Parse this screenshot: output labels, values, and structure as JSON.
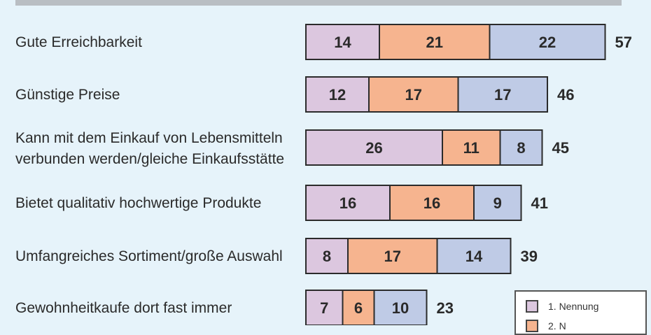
{
  "chart_data": {
    "type": "bar",
    "orientation": "horizontal",
    "stacked": true,
    "categories": [
      [
        "Gute Erreichbarkeit"
      ],
      [
        "Günstige Preise"
      ],
      [
        "Kann mit dem Einkauf von Lebensmitteln",
        "verbunden werden/gleiche Einkaufsstätte"
      ],
      [
        "Bietet qualitativ hochwertige Produkte"
      ],
      [
        "Umfangreiches Sortiment/große Auswahl"
      ],
      [
        "Gewohnheitkaufe dort fast immer"
      ]
    ],
    "series": [
      {
        "name": "1. Nennung",
        "color": "#dcc7df",
        "values": [
          14,
          12,
          26,
          16,
          8,
          7
        ]
      },
      {
        "name": "2. N",
        "color": "#f6b48f",
        "values": [
          21,
          17,
          11,
          16,
          17,
          6
        ]
      },
      {
        "color": "#bfcbe6",
        "values": [
          22,
          17,
          8,
          9,
          14,
          10
        ]
      }
    ],
    "totals": [
      57,
      46,
      45,
      41,
      39,
      23
    ],
    "legend_position": "bottom-right",
    "grid": false
  },
  "colors": {
    "background": "#e6f3fa",
    "bar_border": "#2b2b2b",
    "top_bar": "#b9bec3"
  }
}
